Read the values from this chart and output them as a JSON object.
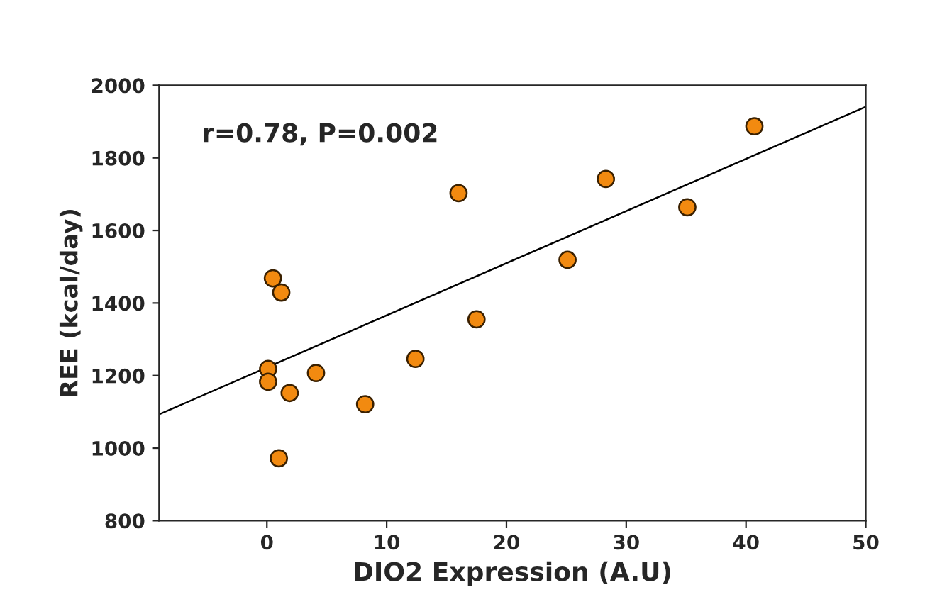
{
  "chart_data": {
    "type": "scatter",
    "xlabel": "DIO2 Expression (A.U)",
    "ylabel": "REE (kcal/day)",
    "annotations": [
      "r=0.78, P=0.002"
    ],
    "xlim": [
      -9,
      50
    ],
    "xticks": [
      0,
      10,
      20,
      30,
      40,
      50
    ],
    "ylim": [
      800,
      2000
    ],
    "yticks": [
      800,
      1000,
      1200,
      1400,
      1600,
      1800,
      2000
    ],
    "grid": false,
    "marker": "circle",
    "series": [
      {
        "color": "#f28a10",
        "x": [
          0.1,
          0.1,
          0.5,
          1.2,
          1.0,
          1.9,
          4.1,
          8.2,
          12.4,
          17.5,
          16.0,
          25.1,
          28.3,
          35.1,
          40.7
        ],
        "values": [
          1218,
          1183,
          1468,
          1429,
          972,
          1152,
          1207,
          1121,
          1246,
          1355,
          1703,
          1519,
          1742,
          1664,
          1887
        ]
      },
      {
        "type": "line",
        "color": "#000000",
        "x": [
          -9,
          50
        ],
        "values": [
          1093,
          1941
        ],
        "marker": "none",
        "line_style": "solid"
      }
    ]
  }
}
